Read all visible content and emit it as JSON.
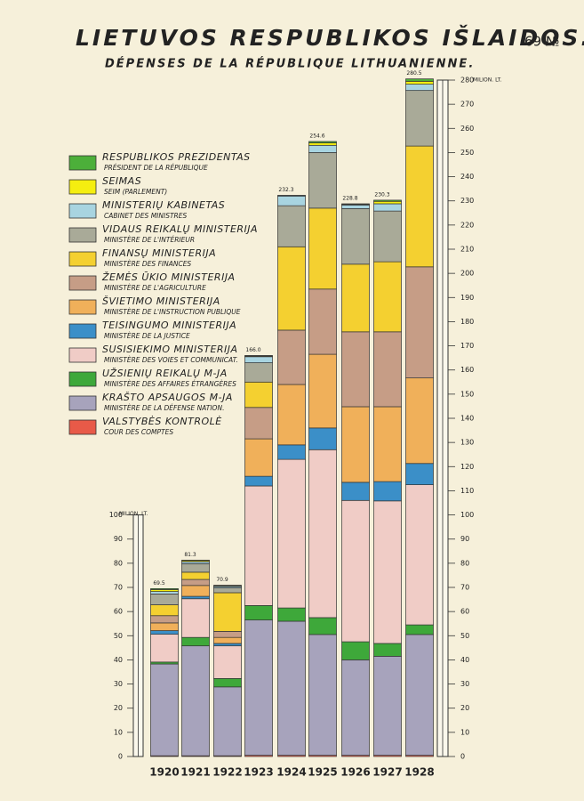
{
  "chart_data": {
    "type": "stacked_bar",
    "title": "LIETUVOS RESPUBLIKOS IŠLAIDOS.",
    "page_number": "69 №",
    "subtitle": "DÉPENSES DE LA RÉPUBLIQUE LITHUANIENNE.",
    "y_unit": "MILION. LT.",
    "categories": [
      "1920",
      "1921",
      "1922",
      "1923",
      "1924",
      "1925",
      "1926",
      "1927",
      "1928"
    ],
    "totals": [
      69.5,
      81.3,
      70.9,
      166.0,
      232.3,
      254.6,
      228.8,
      230.3,
      280.5
    ],
    "total_labels": [
      "69.5",
      "81.3",
      "70.9",
      "166.0",
      "232.3",
      "254.6",
      "228.8",
      "230.3",
      "280.5"
    ],
    "ylim": [
      0,
      280
    ],
    "yticks": [
      0,
      10,
      20,
      30,
      40,
      50,
      60,
      70,
      80,
      90,
      100,
      110,
      120,
      130,
      140,
      150,
      160,
      170,
      180,
      190,
      200,
      210,
      220,
      230,
      240,
      250,
      260,
      270,
      280
    ],
    "left_yticks": [
      0,
      10,
      20,
      30,
      40,
      50,
      60,
      70,
      80,
      90,
      100
    ],
    "series": [
      {
        "name": "VALSTYBĖS KONTROLĖ",
        "name_fr": "COUR DES COMPTES",
        "color": "#e85a48",
        "values": [
          0.3,
          0.3,
          0.3,
          0.5,
          0.5,
          0.5,
          0.5,
          0.5,
          0.5
        ]
      },
      {
        "name": "KRAŠTO APSAUGOS M-JA",
        "name_fr": "MINISTÈRE DE LA DÉFENSE NATION.",
        "color": "#a7a3bc",
        "values": [
          38,
          45.5,
          28.5,
          56,
          55.5,
          50,
          39.5,
          41,
          50
        ]
      },
      {
        "name": "UŽSIENIŲ REIKALŲ M-JA",
        "name_fr": "MINISTÈRE DES AFFAIRES ÉTRANGÈRES",
        "color": "#3ea83a",
        "values": [
          0.8,
          3.5,
          3.5,
          6,
          5.5,
          7,
          7.5,
          5.3,
          4
        ]
      },
      {
        "name": "SUSISIEKIMO MINISTERIJA",
        "name_fr": "MINISTÈRE DES VOIES ET COMMUNICAT.",
        "color": "#f0ccc6",
        "values": [
          11.5,
          16,
          13.5,
          49.5,
          61.5,
          69.5,
          58.5,
          59,
          58
        ]
      },
      {
        "name": "TEISINGUMO MINISTERIJA",
        "name_fr": "MINISTÈRE DE LA JUSTICE",
        "color": "#3b8fc8",
        "values": [
          1.5,
          1,
          1,
          4,
          6,
          9,
          7.5,
          8,
          8.8
        ]
      },
      {
        "name": "ŠVIETIMO MINISTERIJA",
        "name_fr": "MINISTÈRE DE L'INSTRUCTION PUBLIQUE",
        "color": "#f0b05a",
        "values": [
          3.2,
          4.5,
          2.5,
          15.5,
          25,
          30.5,
          31.3,
          31,
          35.4
        ]
      },
      {
        "name": "ŽEMĖS ŪKIO MINISTERIJA",
        "name_fr": "MINISTÈRE DE L'AGRICULTURE",
        "color": "#c69d86",
        "values": [
          3,
          2.5,
          2.5,
          13,
          22.5,
          27,
          31,
          31,
          46
        ]
      },
      {
        "name": "FINANSŲ MINISTERIJA",
        "name_fr": "MINISTÈRE DES FINANCES",
        "color": "#f4d030",
        "values": [
          4.5,
          3,
          16,
          10.5,
          34.5,
          33.5,
          28,
          29,
          50
        ]
      },
      {
        "name": "VIDAUS REIKALŲ MINISTERIJA",
        "name_fr": "MINISTÈRE DE L'INTÉRIEUR",
        "color": "#a9aa98",
        "values": [
          4.5,
          3.5,
          2,
          8,
          17,
          23,
          23,
          21,
          23
        ]
      },
      {
        "name": "MINISTERIŲ KABINETAS",
        "name_fr": "CABINET DES MINISTRES",
        "color": "#a8d4e0",
        "values": [
          1,
          0.8,
          0.6,
          2.5,
          4,
          3,
          1.5,
          3,
          2.6
        ]
      },
      {
        "name": "SEIMAS",
        "name_fr": "SEIM (PARLEMENT)",
        "color": "#f5ee10",
        "values": [
          0.8,
          0.5,
          0.3,
          0.3,
          0.2,
          1,
          0.3,
          1,
          1.2
        ]
      },
      {
        "name": "RESPUBLIKOS PREZIDENTAS",
        "name_fr": "PRÉSIDENT DE LA RÉPUBLIQUE",
        "color": "#4caf3a",
        "values": [
          0.4,
          0.2,
          0.2,
          0.2,
          0.1,
          0.6,
          0.2,
          0.5,
          1.0
        ]
      }
    ]
  }
}
